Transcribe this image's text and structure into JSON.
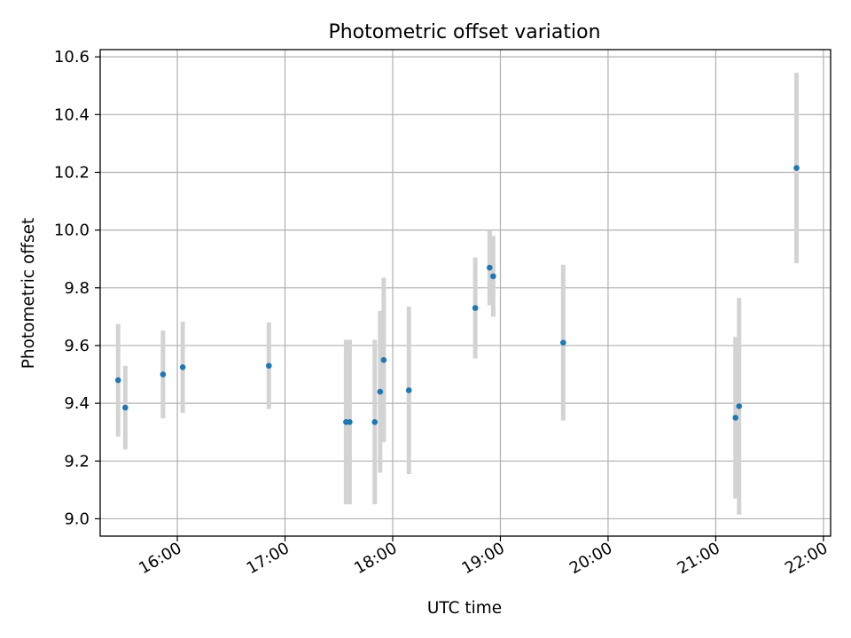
{
  "chart_data": {
    "type": "scatter",
    "title": "Photometric offset variation",
    "xlabel": "UTC time",
    "ylabel": "Photometric offset",
    "x_axis_kind": "time",
    "xlim": [
      "15:17",
      "22:04"
    ],
    "ylim": [
      8.94,
      10.625
    ],
    "x_ticks": [
      "16:00",
      "17:00",
      "18:00",
      "19:00",
      "20:00",
      "21:00",
      "22:00"
    ],
    "y_ticks": [
      9.0,
      9.2,
      9.4,
      9.6,
      9.8,
      10.0,
      10.2,
      10.4,
      10.6
    ],
    "y_tick_labels": [
      "9.0",
      "9.2",
      "9.4",
      "9.6",
      "9.8",
      "10.0",
      "10.2",
      "10.4",
      "10.6"
    ],
    "grid": true,
    "marker_color": "#1f77b4",
    "errorbar_color": "#d3d3d3",
    "series": [
      {
        "points": [
          {
            "x": "15:27",
            "y": 9.48,
            "err": 0.195
          },
          {
            "x": "15:31",
            "y": 9.385,
            "err": 0.145
          },
          {
            "x": "15:52",
            "y": 9.5,
            "err": 0.152
          },
          {
            "x": "16:03",
            "y": 9.525,
            "err": 0.158
          },
          {
            "x": "16:51",
            "y": 9.53,
            "err": 0.15
          },
          {
            "x": "17:34",
            "y": 9.335,
            "err": 0.285
          },
          {
            "x": "17:36",
            "y": 9.335,
            "err": 0.285
          },
          {
            "x": "17:50",
            "y": 9.335,
            "err": 0.285
          },
          {
            "x": "17:53",
            "y": 9.44,
            "err": 0.28
          },
          {
            "x": "17:55",
            "y": 9.55,
            "err": 0.285
          },
          {
            "x": "18:09",
            "y": 9.445,
            "err": 0.29
          },
          {
            "x": "18:46",
            "y": 9.73,
            "err": 0.175
          },
          {
            "x": "18:54",
            "y": 9.87,
            "err": 0.13
          },
          {
            "x": "18:56",
            "y": 9.84,
            "err": 0.14
          },
          {
            "x": "19:35",
            "y": 9.61,
            "err": 0.27
          },
          {
            "x": "21:11",
            "y": 9.35,
            "err": 0.28
          },
          {
            "x": "21:13",
            "y": 9.39,
            "err": 0.375
          },
          {
            "x": "21:45",
            "y": 10.215,
            "err": 0.33
          }
        ]
      }
    ]
  }
}
